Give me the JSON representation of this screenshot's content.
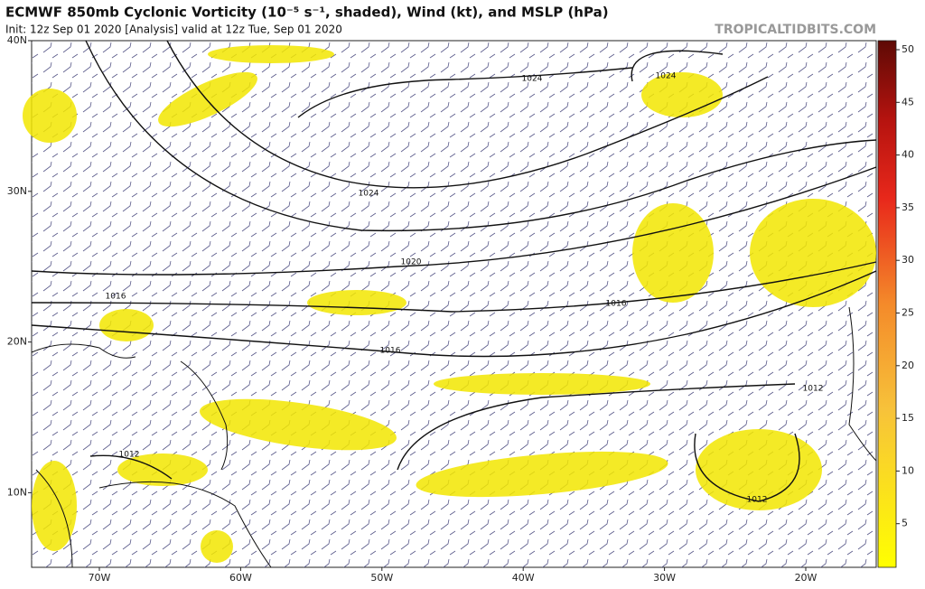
{
  "header": {
    "title": "ECMWF 850mb Cyclonic Vorticity (10⁻⁵ s⁻¹, shaded), Wind (kt), and MSLP (hPa)",
    "subtitle": "Init: 12z Sep 01 2020  [Analysis]   valid at 12z Tue, Sep 01 2020",
    "source": "TROPICALTIDBITS.COM"
  },
  "map": {
    "lat_labels": [
      "40N",
      "30N",
      "20N",
      "10N"
    ],
    "lon_labels": [
      "70W",
      "60W",
      "50W",
      "40W",
      "30W",
      "20W"
    ],
    "isobar_labels": [
      "1024",
      "1024",
      "1024",
      "1020",
      "1016",
      "1016",
      "1016",
      "1012",
      "1012",
      "1012"
    ]
  },
  "colorbar": {
    "ticks": [
      5,
      10,
      15,
      20,
      25,
      30,
      35,
      40,
      45,
      50
    ]
  }
}
